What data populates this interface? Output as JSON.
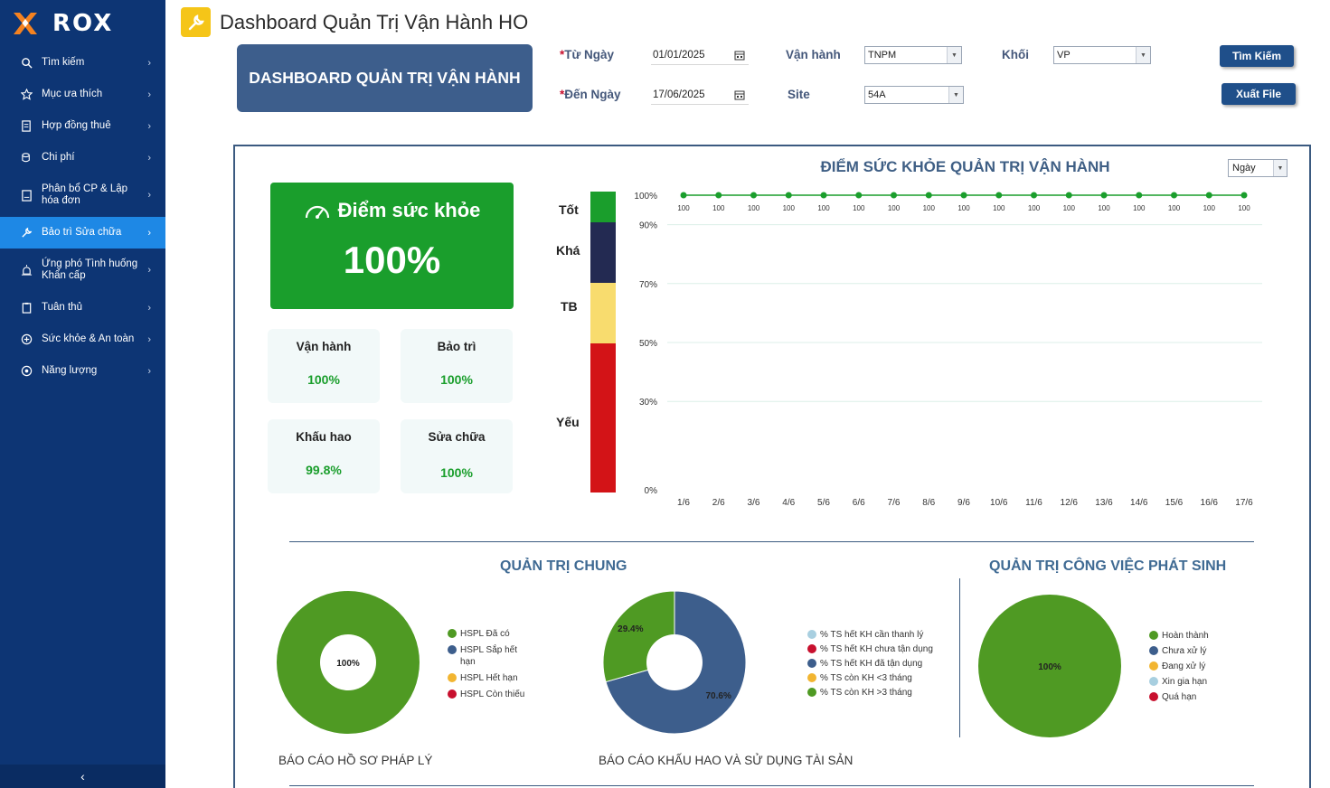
{
  "app": {
    "logo_text": "ROX",
    "collapse_icon": "chevron-left-icon"
  },
  "sidebar": {
    "items": [
      {
        "label": "Tìm kiếm",
        "icon": "search-icon"
      },
      {
        "label": "Mục ưa thích",
        "icon": "star-icon"
      },
      {
        "label": "Hợp đồng thuê",
        "icon": "contract-icon"
      },
      {
        "label": "Chi phí",
        "icon": "coins-icon"
      },
      {
        "label": "Phân bổ CP & Lập hóa đơn",
        "icon": "invoice-icon"
      },
      {
        "label": "Bảo trì Sửa chữa",
        "icon": "wrench-icon"
      },
      {
        "label": "Ứng phó Tình huống Khẩn cấp",
        "icon": "alarm-icon"
      },
      {
        "label": "Tuân thủ",
        "icon": "clipboard-icon"
      },
      {
        "label": "Sức khỏe & An toàn",
        "icon": "plus-circle-icon"
      },
      {
        "label": "Năng lượng",
        "icon": "energy-icon"
      }
    ]
  },
  "header": {
    "title": "Dashboard Quản Trị Vận Hành HO",
    "icon": "wrench-icon"
  },
  "banner": {
    "text": "DASHBOARD QUẢN TRỊ VẬN HÀNH"
  },
  "filters": {
    "from_label": "Từ Ngày",
    "from_value": "01/01/2025",
    "to_label": "Đến Ngày",
    "to_value": "17/06/2025",
    "required_mark": "*",
    "van_hanh_label": "Vận hành",
    "van_hanh_value": "TNPM",
    "khoi_label": "Khối",
    "khoi_value": "VP",
    "site_label": "Site",
    "site_value": "54A",
    "search_button": "Tìm Kiếm",
    "export_button": "Xuất File"
  },
  "health": {
    "title": "Điểm sức khỏe",
    "value": "100%",
    "metrics": [
      {
        "label": "Vận hành",
        "value": "100%"
      },
      {
        "label": "Bảo trì",
        "value": "100%"
      },
      {
        "label": "Khấu hao",
        "value": "99.8%"
      },
      {
        "label": "Sửa chữa",
        "value": "100%"
      }
    ],
    "bands": [
      {
        "label": "Tốt",
        "color": "#1a9e2c"
      },
      {
        "label": "Khá",
        "color": "#232a52"
      },
      {
        "label": "TB",
        "color": "#f8dc6e"
      },
      {
        "label": "Yếu",
        "color": "#d31317"
      }
    ]
  },
  "trend": {
    "title": "ĐIỂM SỨC KHỎE QUẢN TRỊ VẬN HÀNH",
    "period_select": "Ngày"
  },
  "chart_data": [
    {
      "type": "line",
      "title": "ĐIỂM SỨC KHỎE QUẢN TRỊ VẬN HÀNH",
      "categories": [
        "1/6",
        "2/6",
        "3/6",
        "4/6",
        "5/6",
        "6/6",
        "7/6",
        "8/6",
        "9/6",
        "10/6",
        "11/6",
        "12/6",
        "13/6",
        "14/6",
        "15/6",
        "16/6",
        "17/6"
      ],
      "values": [
        100,
        100,
        100,
        100,
        100,
        100,
        100,
        100,
        100,
        100,
        100,
        100,
        100,
        100,
        100,
        100,
        100
      ],
      "y_ticks": [
        0,
        30,
        50,
        70,
        90,
        100
      ],
      "y_tick_labels": [
        "0%",
        "30%",
        "50%",
        "70%",
        "90%",
        "100%"
      ],
      "ylim": [
        0,
        100
      ],
      "color": "#1a9e2c"
    },
    {
      "type": "pie",
      "title": "BÁO CÁO HỒ SƠ PHÁP LÝ",
      "labels": [
        "HSPL Đã có",
        "HSPL Sắp hết hạn",
        "HSPL Hết hạn",
        "HSPL Còn thiếu"
      ],
      "values": [
        100,
        0,
        0,
        0
      ],
      "colors": [
        "#4f9a23",
        "#3d5e8c",
        "#f2b531",
        "#c8102e"
      ],
      "center_label": "100%"
    },
    {
      "type": "pie",
      "title": "BÁO CÁO KHẤU HAO VÀ SỬ DỤNG TÀI SẢN",
      "labels": [
        "% TS hết KH cần thanh lý",
        "% TS hết KH chưa tận dụng",
        "% TS hết KH đã tận dụng",
        "% TS còn KH <3 tháng",
        "% TS còn KH >3 tháng"
      ],
      "values": [
        0,
        0,
        70.6,
        0,
        29.4
      ],
      "value_labels": [
        "",
        "",
        "70.6%",
        "",
        "29.4%"
      ],
      "colors": [
        "#a8cfe0",
        "#c8102e",
        "#3d5e8c",
        "#f2b531",
        "#4f9a23"
      ]
    },
    {
      "type": "pie",
      "title": "QUẢN TRỊ CÔNG VIỆC PHÁT SINH",
      "labels": [
        "Hoàn thành",
        "Chưa xử lý",
        "Đang xử lý",
        "Xin gia hạn",
        "Quá hạn"
      ],
      "values": [
        100,
        0,
        0,
        0,
        0
      ],
      "colors": [
        "#4f9a23",
        "#3d5e8c",
        "#f2b531",
        "#a8cfe0",
        "#c8102e"
      ],
      "center_label": "100%"
    }
  ],
  "sections": {
    "general_title": "QUẢN TRỊ CHUNG",
    "incident_title": "QUẢN TRỊ CÔNG VIỆC PHÁT SINH",
    "legal_report": "BÁO CÁO HỒ SƠ PHÁP LÝ",
    "depreciation_report": "BÁO CÁO KHẤU HAO VÀ SỬ DỤNG TÀI SẢN"
  }
}
